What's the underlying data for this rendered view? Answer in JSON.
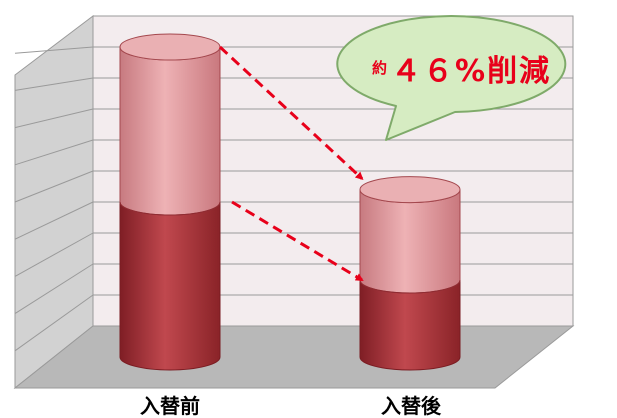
{
  "chart_data": {
    "type": "bar",
    "categories": [
      "入替前",
      "入替後"
    ],
    "series": [
      {
        "values": [
          100,
          54
        ],
        "color": "#b54449"
      },
      {
        "values": [
          100,
          54
        ],
        "color": "#e39a9c"
      }
    ],
    "lower_share": [
      0.5,
      0.46
    ],
    "ylim": [
      0,
      100
    ],
    "grid": true,
    "annotation": {
      "prefix": "約",
      "text": "４６%削減"
    },
    "colors": {
      "lower": "#b54449",
      "upper": "#e39a9c",
      "arrow": "#e8001a",
      "callout_fill": "#d6ecc2",
      "callout_stroke": "#7faa6a",
      "wall": "#f3ecee",
      "side_wall": "#d2d2d2",
      "floor": "#b8b8b8"
    }
  }
}
